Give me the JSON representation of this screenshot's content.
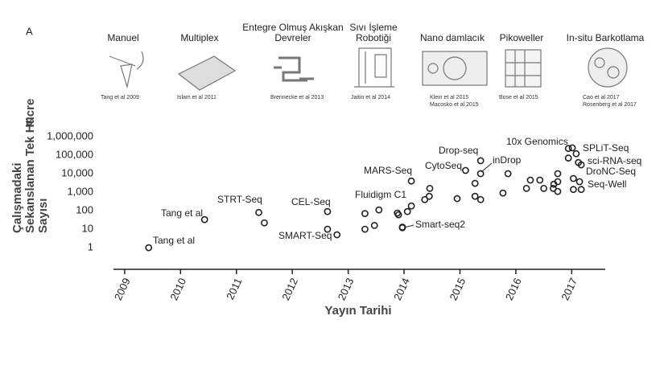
{
  "panel_a": {
    "label": "A",
    "methods": [
      {
        "name": [
          "Manuel"
        ],
        "citation": [
          "Tang et al 2009"
        ]
      },
      {
        "name": [
          "Multiplex"
        ],
        "citation": [
          "Islam et al 2011"
        ]
      },
      {
        "name": [
          "Entegre Olmuş Akışkan",
          "Devreler"
        ],
        "citation": [
          "Brennecke et al 2013"
        ]
      },
      {
        "name": [
          "Sıvı İşleme",
          "Robotiği"
        ],
        "citation": [
          "Jaitin et al 2014"
        ]
      },
      {
        "name": [
          "Nano damlacık"
        ],
        "citation": [
          "Klein et al 2015",
          "Macosko et al 2015"
        ]
      },
      {
        "name": [
          "Pikoweller"
        ],
        "citation": [
          "Bose et al 2015"
        ]
      },
      {
        "name": [
          "In-situ Barkotlama"
        ],
        "citation": [
          "Cao et al 2017",
          "Rosenberg et al 2017"
        ]
      }
    ]
  },
  "chart_data": {
    "type": "scatter",
    "panel_label": "B",
    "xlabel": "Yayın Tarihi",
    "ylabel": [
      "Çalışmadaki",
      "Sekanslanan Tek Hücre",
      "Sayısı"
    ],
    "yscale": "log",
    "color": "#222222",
    "xlim": [
      2008.8,
      2017.6
    ],
    "xticks": [
      2009,
      2010,
      2011,
      2012,
      2013,
      2014,
      2015,
      2016,
      2017
    ],
    "ylim": [
      0.25,
      3000000
    ],
    "yticks": [
      1,
      10,
      100,
      {
        "value": 1000,
        "label": "1,000"
      },
      {
        "value": 10000,
        "label": "10,000"
      },
      {
        "value": 100000,
        "label": "100,000"
      },
      {
        "value": 1000000,
        "label": "1,000,000"
      }
    ],
    "x": [
      2009.43,
      2010.43,
      2011.4,
      2011.5,
      2012.63,
      2012.63,
      2012.8,
      2013.3,
      2013.3,
      2013.47,
      2013.55,
      2013.88,
      2013.9,
      2013.97,
      2013.97,
      2014.06,
      2014.13,
      2014.13,
      2014.37,
      2014.45,
      2014.46,
      2014.95,
      2015.1,
      2015.27,
      2015.27,
      2015.37,
      2015.37,
      2015.37,
      2015.77,
      2015.86,
      2016.19,
      2016.26,
      2016.43,
      2016.5,
      2016.67,
      2016.68,
      2016.75,
      2016.75,
      2016.75,
      2016.94,
      2017.01,
      2016.94,
      2017.08,
      2017.03,
      2017.12,
      2017.17,
      2017.03,
      2017.14,
      2017.17
    ],
    "values": [
      1,
      33,
      80,
      22,
      90,
      10,
      5,
      70,
      10,
      16,
      110,
      75,
      60,
      13,
      12,
      90,
      180,
      4000,
      400,
      600,
      1600,
      450,
      15000,
      600,
      3000,
      400,
      50000,
      10000,
      900,
      10000,
      1600,
      4500,
      4500,
      1600,
      1600,
      2700,
      3700,
      10000,
      1100,
      230000,
      250000,
      70000,
      120000,
      5500,
      40000,
      30000,
      1400,
      3700,
      1400
    ],
    "annotations": [
      "Tang et al",
      "Tang et al",
      "STRT-Seq",
      "CEL-Seq",
      "SMART-Seq",
      "Fluidigm C1",
      "Smart-seq2",
      "MARS-Seq",
      "CytoSeq",
      "Drop-seq",
      "inDrop",
      "10x Genomics",
      "SPLiT-Seq",
      "sci-RNA-seq",
      "DroNC-Seq",
      "Seq-Well"
    ]
  }
}
